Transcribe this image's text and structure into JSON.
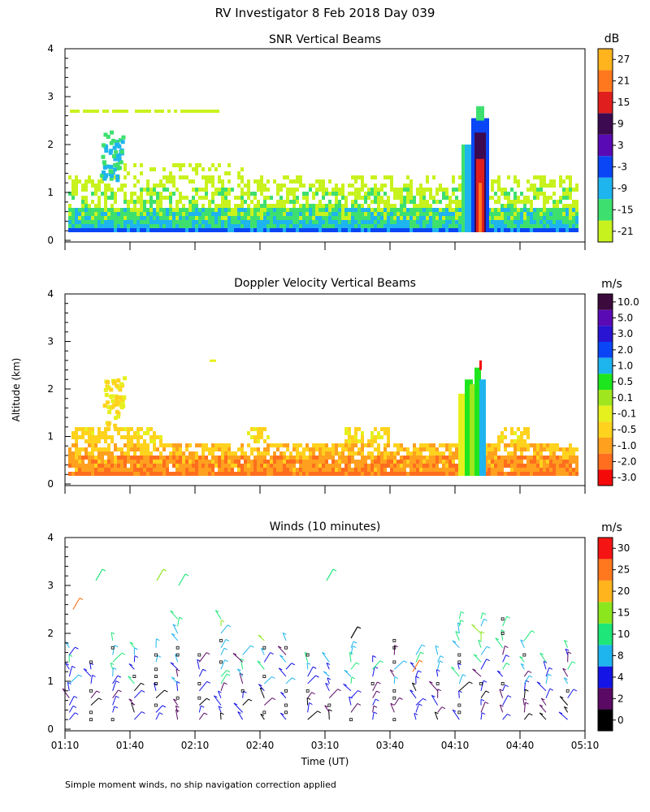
{
  "figure": {
    "title": "RV Investigator    8 Feb 2018 Day 039",
    "ylabel": "Altitude (km)",
    "footnote": "Simple moment winds, no ship navigation correction applied"
  },
  "chart_data": [
    {
      "id": "snr",
      "type": "heatmap",
      "title": "SNR Vertical Beams",
      "ylabel": "Altitude (km)",
      "ylim": [
        0,
        4
      ],
      "yticks": [
        "0",
        "1",
        "2",
        "3",
        "4"
      ],
      "xlim": [
        "01:10",
        "05:10"
      ],
      "colorbar": {
        "unit": "dB",
        "levels": [
          "-21",
          "-15",
          "-9",
          "-3",
          "3",
          "9",
          "15",
          "21",
          "27"
        ],
        "colors": [
          "#c8f21e",
          "#3de06e",
          "#1eb4ee",
          "#0a46f5",
          "#5a0ab4",
          "#3c0a50",
          "#e11e1e",
          "#ff781e",
          "#ffb41e"
        ]
      },
      "features": [
        {
          "desc": "boundary-layer echo",
          "x_start": "01:10",
          "x_end": "05:10",
          "alt_km": [
            0.2,
            1.6
          ],
          "dominant_db": -15
        },
        {
          "desc": "cloud layer",
          "x_start": "01:10",
          "x_end": "02:20",
          "alt_km": [
            2.6,
            2.8
          ],
          "dominant_db": -21
        },
        {
          "desc": "plume",
          "x_start": "01:25",
          "x_end": "01:35",
          "alt_km": [
            1.4,
            2.3
          ],
          "dominant_db": -9
        },
        {
          "desc": "strong precipitation core",
          "x_start": "04:15",
          "x_end": "04:25",
          "alt_km": [
            0.2,
            2.8
          ],
          "peak_db": 21
        }
      ]
    },
    {
      "id": "doppler",
      "type": "heatmap",
      "title": "Doppler Velocity Vertical Beams",
      "ylim": [
        0,
        4
      ],
      "yticks": [
        "0",
        "1",
        "2",
        "3",
        "4"
      ],
      "xlim": [
        "01:10",
        "05:10"
      ],
      "colorbar": {
        "unit": "m/s",
        "levels": [
          "10.0",
          "5.0",
          "3.0",
          "2.0",
          "1.0",
          "0.5",
          "0.1",
          "-0.1",
          "-0.5",
          "-1.0",
          "-2.0",
          "-3.0"
        ],
        "colors": [
          "#3c0a3c",
          "#5a0ab4",
          "#2814d2",
          "#0a46f5",
          "#1eb4ee",
          "#1ee61e",
          "#a0e61e",
          "#e6f01e",
          "#ffd21e",
          "#ffa01e",
          "#ff6e1e",
          "#f50a0a"
        ]
      },
      "features": [
        {
          "desc": "boundary-layer echo",
          "x_start": "01:10",
          "x_end": "05:10",
          "alt_km": [
            0.2,
            1.3
          ],
          "dominant_ms": -1.0
        },
        {
          "desc": "plume",
          "x_start": "01:25",
          "x_end": "01:35",
          "alt_km": [
            1.4,
            2.3
          ],
          "dominant_ms": -0.5
        },
        {
          "desc": "precipitation core",
          "x_start": "04:15",
          "x_end": "04:25",
          "alt_km": [
            0.2,
            2.6
          ],
          "dominant_ms": 1.0
        }
      ]
    },
    {
      "id": "winds",
      "type": "scatter",
      "title": "Winds (10 minutes)",
      "xlabel": "Time (UT)",
      "xticks": [
        "01:10",
        "01:40",
        "02:10",
        "02:40",
        "03:10",
        "03:40",
        "04:10",
        "04:40",
        "05:10"
      ],
      "ylim": [
        0,
        4
      ],
      "yticks": [
        "0",
        "1",
        "2",
        "3",
        "4"
      ],
      "colorbar": {
        "unit": "m/s",
        "levels": [
          "0",
          "2",
          "4",
          "8",
          "10",
          "15",
          "20",
          "25",
          "30"
        ],
        "colors": [
          "#000000",
          "#5a0a64",
          "#1414e6",
          "#1eb4ee",
          "#1ee678",
          "#8ce61e",
          "#ffb41e",
          "#ff781e",
          "#f51414"
        ]
      }
    }
  ]
}
